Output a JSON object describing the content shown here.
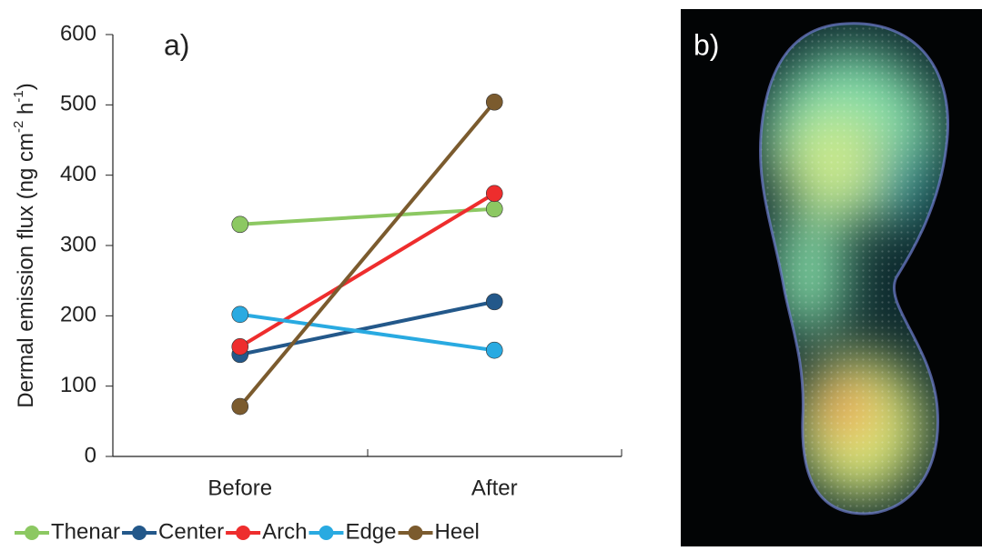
{
  "chart_data": {
    "type": "line",
    "annotation": "a)",
    "ylabel": [
      "Dermal emission flux (ng cm",
      "-2",
      " h",
      "-1",
      ")"
    ],
    "categories": [
      "Before",
      "After"
    ],
    "series": [
      {
        "name": "Thenar",
        "color": "#8cc862",
        "values": [
          330,
          352
        ]
      },
      {
        "name": "Center",
        "color": "#23588a",
        "values": [
          145,
          220
        ]
      },
      {
        "name": "Arch",
        "color": "#ee2d2d",
        "values": [
          156,
          374
        ]
      },
      {
        "name": "Edge",
        "color": "#29aae1",
        "values": [
          202,
          151
        ]
      },
      {
        "name": "Heel",
        "color": "#7b5b2e",
        "values": [
          71,
          504
        ]
      }
    ],
    "ylim": [
      0,
      600
    ],
    "yticks": [
      0,
      100,
      200,
      300,
      400,
      500,
      600
    ],
    "legend": "bottom"
  },
  "image_panel": {
    "label": "b)"
  }
}
